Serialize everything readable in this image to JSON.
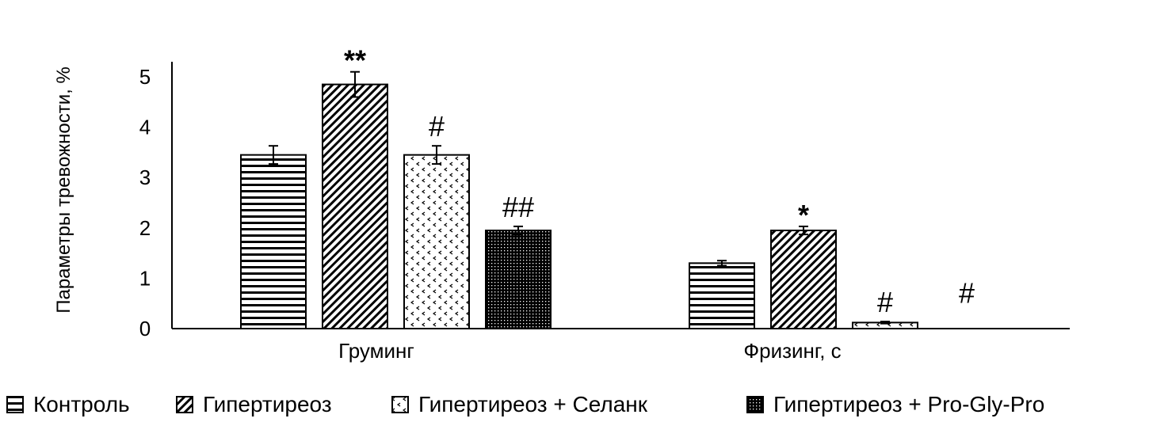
{
  "chart_data": {
    "type": "bar",
    "ylabel": "Параметры тревожности, %",
    "ylim": [
      0,
      5.3
    ],
    "yticks": [
      "0",
      "1",
      "2",
      "3",
      "4",
      "5"
    ],
    "categories": [
      "Груминг",
      "Фризинг, с"
    ],
    "series": [
      {
        "name": "Контроль",
        "pattern": "horizontal",
        "values": [
          3.45,
          1.3
        ],
        "errors": [
          0.18,
          0.05
        ],
        "annotations": [
          "",
          ""
        ]
      },
      {
        "name": "Гипертиреоз",
        "pattern": "diagonal",
        "values": [
          4.85,
          1.95
        ],
        "errors": [
          0.25,
          0.08
        ],
        "annotations": [
          "**",
          "*"
        ]
      },
      {
        "name": "Гипертиреоз + Селанк",
        "pattern": "dots",
        "values": [
          3.45,
          0.12
        ],
        "errors": [
          0.18,
          0.02
        ],
        "annotations": [
          "#",
          "#"
        ]
      },
      {
        "name": "Гипертиреоз + Pro-Gly-Pro",
        "pattern": "dense",
        "values": [
          1.95,
          0.0
        ],
        "errors": [
          0.08,
          0.0
        ],
        "annotations": [
          "##",
          "#"
        ]
      }
    ],
    "colors": {
      "ink": "#000000",
      "background": "#ffffff"
    }
  }
}
